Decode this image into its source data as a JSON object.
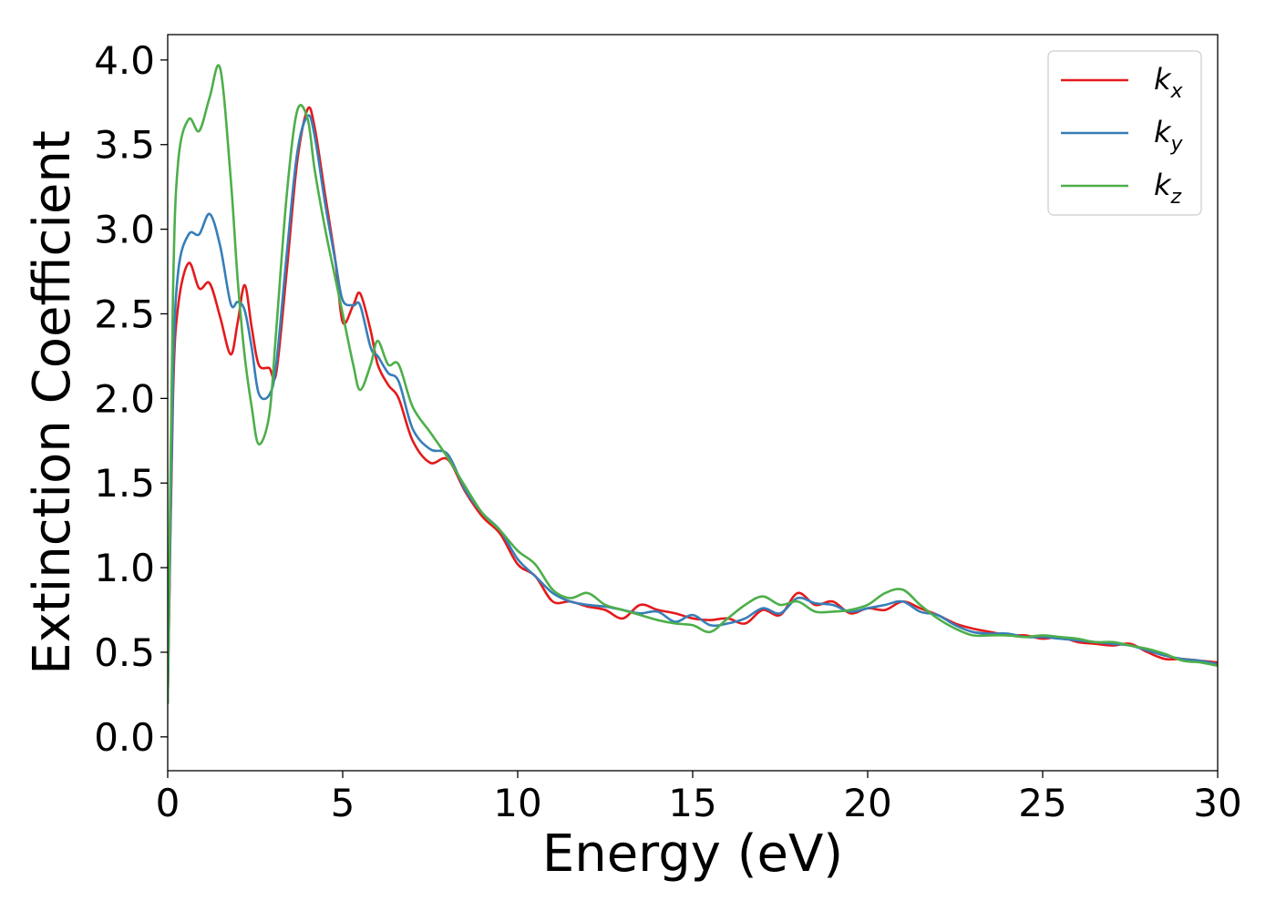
{
  "chart_data": {
    "type": "line",
    "title": "",
    "xlabel": "Energy (eV)",
    "ylabel": "Extinction Coefficient",
    "xlim": [
      0,
      30
    ],
    "ylim": [
      -0.2,
      4.15
    ],
    "xticks": [
      0,
      5,
      10,
      15,
      20,
      25,
      30
    ],
    "xtick_labels": [
      "0",
      "5",
      "10",
      "15",
      "20",
      "25",
      "30"
    ],
    "yticks": [
      0.0,
      0.5,
      1.0,
      1.5,
      2.0,
      2.5,
      3.0,
      3.5,
      4.0
    ],
    "ytick_labels": [
      "0.0",
      "0.5",
      "1.0",
      "1.5",
      "2.0",
      "2.5",
      "3.0",
      "3.5",
      "4.0"
    ],
    "grid": false,
    "legend_position": "top-right",
    "series": [
      {
        "name": "k",
        "subscript": "x",
        "color": "#e41a1c",
        "x": [
          0,
          0.15,
          0.3,
          0.6,
          0.9,
          1.2,
          1.5,
          1.8,
          2.0,
          2.2,
          2.4,
          2.6,
          2.9,
          3.1,
          3.4,
          3.7,
          4.0,
          4.2,
          4.5,
          4.8,
          5.0,
          5.3,
          5.5,
          5.8,
          6.0,
          6.3,
          6.6,
          7.0,
          7.5,
          8.0,
          8.5,
          9.0,
          9.5,
          10.0,
          10.5,
          11.0,
          11.5,
          12.0,
          12.5,
          13.0,
          13.5,
          14.0,
          14.5,
          15.0,
          15.5,
          16.0,
          16.5,
          17.0,
          17.5,
          18.0,
          18.5,
          19.0,
          19.5,
          20.0,
          20.5,
          21.0,
          21.5,
          22.0,
          22.5,
          23.0,
          23.5,
          24.0,
          24.5,
          25.0,
          25.5,
          26.0,
          26.5,
          27.0,
          27.5,
          28.0,
          28.5,
          29.0,
          29.5,
          30.0
        ],
        "values": [
          0.2,
          2.0,
          2.55,
          2.8,
          2.65,
          2.68,
          2.48,
          2.26,
          2.45,
          2.67,
          2.42,
          2.2,
          2.18,
          2.15,
          2.75,
          3.4,
          3.71,
          3.6,
          3.2,
          2.8,
          2.45,
          2.55,
          2.62,
          2.4,
          2.2,
          2.08,
          2.0,
          1.75,
          1.62,
          1.64,
          1.45,
          1.3,
          1.2,
          1.02,
          0.95,
          0.8,
          0.8,
          0.77,
          0.75,
          0.7,
          0.78,
          0.75,
          0.73,
          0.7,
          0.69,
          0.7,
          0.67,
          0.75,
          0.72,
          0.85,
          0.78,
          0.8,
          0.73,
          0.76,
          0.75,
          0.8,
          0.76,
          0.72,
          0.67,
          0.64,
          0.62,
          0.6,
          0.6,
          0.58,
          0.59,
          0.56,
          0.55,
          0.54,
          0.55,
          0.5,
          0.46,
          0.46,
          0.45,
          0.44
        ]
      },
      {
        "name": "k",
        "subscript": "y",
        "color": "#377eb8",
        "x": [
          0,
          0.15,
          0.3,
          0.6,
          0.9,
          1.2,
          1.5,
          1.8,
          2.0,
          2.2,
          2.4,
          2.6,
          2.9,
          3.1,
          3.4,
          3.7,
          4.0,
          4.2,
          4.5,
          4.8,
          5.0,
          5.3,
          5.5,
          5.8,
          6.0,
          6.3,
          6.6,
          7.0,
          7.5,
          8.0,
          8.5,
          9.0,
          9.5,
          10.0,
          10.5,
          11.0,
          11.5,
          12.0,
          12.5,
          13.0,
          13.5,
          14.0,
          14.5,
          15.0,
          15.5,
          16.0,
          16.5,
          17.0,
          17.5,
          18.0,
          18.5,
          19.0,
          19.5,
          20.0,
          20.5,
          21.0,
          21.5,
          22.0,
          22.5,
          23.0,
          23.5,
          24.0,
          24.5,
          25.0,
          25.5,
          26.0,
          26.5,
          27.0,
          27.5,
          28.0,
          28.5,
          29.0,
          29.5,
          30.0
        ],
        "values": [
          0.2,
          2.1,
          2.75,
          2.97,
          2.97,
          3.09,
          2.9,
          2.56,
          2.57,
          2.52,
          2.3,
          2.03,
          2.02,
          2.2,
          2.85,
          3.45,
          3.67,
          3.55,
          3.15,
          2.8,
          2.58,
          2.55,
          2.55,
          2.3,
          2.25,
          2.15,
          2.1,
          1.82,
          1.7,
          1.67,
          1.46,
          1.32,
          1.22,
          1.05,
          0.95,
          0.85,
          0.8,
          0.78,
          0.77,
          0.75,
          0.73,
          0.74,
          0.68,
          0.72,
          0.66,
          0.67,
          0.7,
          0.76,
          0.73,
          0.82,
          0.79,
          0.78,
          0.74,
          0.76,
          0.78,
          0.8,
          0.74,
          0.72,
          0.66,
          0.62,
          0.61,
          0.61,
          0.59,
          0.59,
          0.58,
          0.57,
          0.56,
          0.55,
          0.54,
          0.51,
          0.48,
          0.46,
          0.45,
          0.43
        ]
      },
      {
        "name": "k",
        "subscript": "z",
        "color": "#4daf4a",
        "x": [
          0,
          0.15,
          0.3,
          0.6,
          0.9,
          1.2,
          1.5,
          1.8,
          2.0,
          2.2,
          2.4,
          2.6,
          2.9,
          3.1,
          3.4,
          3.7,
          4.0,
          4.2,
          4.5,
          4.8,
          5.0,
          5.3,
          5.5,
          5.8,
          6.0,
          6.3,
          6.6,
          7.0,
          7.5,
          8.0,
          8.5,
          9.0,
          9.5,
          10.0,
          10.5,
          11.0,
          11.5,
          12.0,
          12.5,
          13.0,
          13.5,
          14.0,
          14.5,
          15.0,
          15.5,
          16.0,
          16.5,
          17.0,
          17.5,
          18.0,
          18.5,
          19.0,
          19.5,
          20.0,
          20.5,
          21.0,
          21.5,
          22.0,
          22.5,
          23.0,
          23.5,
          24.0,
          24.5,
          25.0,
          25.5,
          26.0,
          26.5,
          27.0,
          27.5,
          28.0,
          28.5,
          29.0,
          29.5,
          30.0
        ],
        "values": [
          0.2,
          2.6,
          3.4,
          3.65,
          3.58,
          3.78,
          3.95,
          3.3,
          2.7,
          2.25,
          1.95,
          1.73,
          1.9,
          2.4,
          3.2,
          3.7,
          3.65,
          3.35,
          3.0,
          2.7,
          2.5,
          2.2,
          2.05,
          2.2,
          2.34,
          2.2,
          2.2,
          1.95,
          1.8,
          1.65,
          1.48,
          1.32,
          1.22,
          1.1,
          1.02,
          0.87,
          0.82,
          0.85,
          0.78,
          0.75,
          0.72,
          0.69,
          0.67,
          0.66,
          0.62,
          0.7,
          0.78,
          0.83,
          0.78,
          0.8,
          0.74,
          0.74,
          0.75,
          0.78,
          0.85,
          0.87,
          0.78,
          0.7,
          0.64,
          0.6,
          0.6,
          0.6,
          0.59,
          0.6,
          0.59,
          0.58,
          0.56,
          0.56,
          0.54,
          0.52,
          0.49,
          0.45,
          0.44,
          0.42
        ]
      }
    ]
  }
}
